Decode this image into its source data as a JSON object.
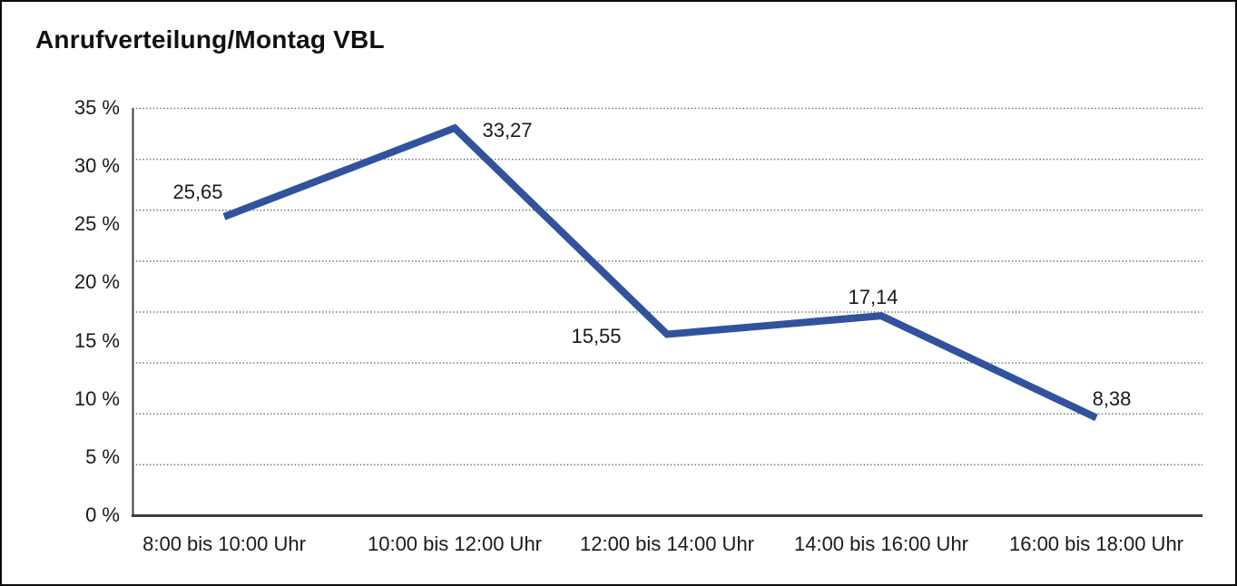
{
  "title": "Anrufverteilung/Montag VBL",
  "chart_data": {
    "type": "line",
    "title": "Anrufverteilung/Montag VBL",
    "categories": [
      "8:00 bis 10:00 Uhr",
      "10:00 bis 12:00 Uhr",
      "12:00 bis 14:00 Uhr",
      "14:00 bis 16:00 Uhr",
      "16:00 bis 18:00 Uhr"
    ],
    "values": [
      25.65,
      33.27,
      15.55,
      17.14,
      8.38
    ],
    "point_labels": [
      "25,65",
      "33,27",
      "15,55",
      "17,14",
      "8,38"
    ],
    "xlabel": "",
    "ylabel": "",
    "ylim": [
      0,
      35
    ],
    "ytick_values": [
      35,
      30,
      25,
      20,
      15,
      10,
      5,
      0
    ],
    "ytick_labels": [
      "35 %",
      "30 %",
      "25 %",
      "20 %",
      "15 %",
      "10 %",
      "5 %",
      "0 %"
    ],
    "grid": "horizontal-dotted",
    "legend": "none",
    "line_color": "#31529D",
    "axis_color": "#3D3D3D",
    "grid_color": "#6E6E6E",
    "text_color": "#1A1A1A"
  }
}
